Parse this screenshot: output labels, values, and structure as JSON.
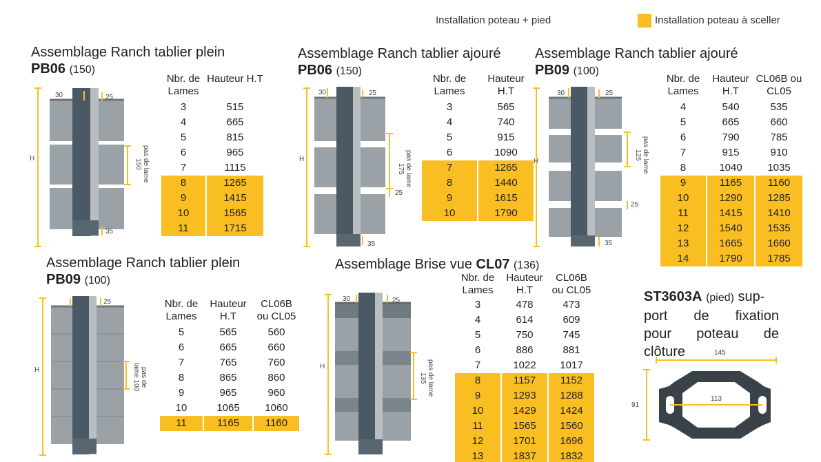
{
  "legend": {
    "item1": "Installation poteau + pied",
    "item2": "Installation poteau à sceller",
    "highlight_color": "#f9bf22"
  },
  "labels": {
    "H": "H",
    "d30": "30",
    "d25": "25",
    "d35": "35",
    "pas150": "pas de lame 150",
    "pas175": "pas de lame 175",
    "pas125": "pas de lame 125",
    "pas100": "pas de lame 100",
    "pas135": "pas de lame 135",
    "dim145": "145",
    "dim113": "113",
    "dim91": "91"
  },
  "blocks": [
    {
      "title_prefix": "Assemblage Ranch tablier plein",
      "code": "PB06",
      "num": "(150)",
      "headers": [
        "Nbr. de Lames",
        "Hauteur H.T"
      ],
      "rows": [
        {
          "c": [
            "3",
            "515"
          ],
          "hl": false
        },
        {
          "c": [
            "4",
            "665"
          ],
          "hl": false
        },
        {
          "c": [
            "5",
            "815"
          ],
          "hl": false
        },
        {
          "c": [
            "6",
            "965"
          ],
          "hl": false
        },
        {
          "c": [
            "7",
            "1115"
          ],
          "hl": false
        },
        {
          "c": [
            "8",
            "1265"
          ],
          "hl": true
        },
        {
          "c": [
            "9",
            "1415"
          ],
          "hl": true
        },
        {
          "c": [
            "10",
            "1565"
          ],
          "hl": true
        },
        {
          "c": [
            "11",
            "1715"
          ],
          "hl": true
        }
      ]
    },
    {
      "title_prefix": "Assemblage Ranch tablier ajouré",
      "code": "PB06",
      "num": "(150)",
      "headers": [
        "Nbr. de Lames",
        "Hauteur H.T"
      ],
      "rows": [
        {
          "c": [
            "3",
            "565"
          ],
          "hl": false
        },
        {
          "c": [
            "4",
            "740"
          ],
          "hl": false
        },
        {
          "c": [
            "5",
            "915"
          ],
          "hl": false
        },
        {
          "c": [
            "6",
            "1090"
          ],
          "hl": false
        },
        {
          "c": [
            "7",
            "1265"
          ],
          "hl": true
        },
        {
          "c": [
            "8",
            "1440"
          ],
          "hl": true
        },
        {
          "c": [
            "9",
            "1615"
          ],
          "hl": true
        },
        {
          "c": [
            "10",
            "1790"
          ],
          "hl": true
        }
      ]
    },
    {
      "title_prefix": "Assemblage Ranch tablier ajouré",
      "code": "PB09",
      "num": "(100)",
      "headers": [
        "Nbr. de Lames",
        "Hauteur H.T",
        "CL06B ou CL05"
      ],
      "rows": [
        {
          "c": [
            "4",
            "540",
            "535"
          ],
          "hl": false
        },
        {
          "c": [
            "5",
            "665",
            "660"
          ],
          "hl": false
        },
        {
          "c": [
            "6",
            "790",
            "785"
          ],
          "hl": false
        },
        {
          "c": [
            "7",
            "915",
            "910"
          ],
          "hl": false
        },
        {
          "c": [
            "8",
            "1040",
            "1035"
          ],
          "hl": false
        },
        {
          "c": [
            "9",
            "1165",
            "1160"
          ],
          "hl": true
        },
        {
          "c": [
            "10",
            "1290",
            "1285"
          ],
          "hl": true
        },
        {
          "c": [
            "11",
            "1415",
            "1410"
          ],
          "hl": true
        },
        {
          "c": [
            "12",
            "1540",
            "1535"
          ],
          "hl": true
        },
        {
          "c": [
            "13",
            "1665",
            "1660"
          ],
          "hl": true
        },
        {
          "c": [
            "14",
            "1790",
            "1785"
          ],
          "hl": true
        }
      ]
    },
    {
      "title_prefix": "Assemblage Ranch tablier plein",
      "code": "PB09",
      "num": "(100)",
      "headers": [
        "Nbr. de Lames",
        "Hauteur H.T",
        "CL06B ou CL05"
      ],
      "rows": [
        {
          "c": [
            "5",
            "565",
            "560"
          ],
          "hl": false
        },
        {
          "c": [
            "6",
            "665",
            "660"
          ],
          "hl": false
        },
        {
          "c": [
            "7",
            "765",
            "760"
          ],
          "hl": false
        },
        {
          "c": [
            "8",
            "865",
            "860"
          ],
          "hl": false
        },
        {
          "c": [
            "9",
            "965",
            "960"
          ],
          "hl": false
        },
        {
          "c": [
            "10",
            "1065",
            "1060"
          ],
          "hl": false
        },
        {
          "c": [
            "11",
            "1165",
            "1160"
          ],
          "hl": true
        }
      ]
    },
    {
      "title_prefix": "Assemblage Brise vue",
      "code": "CL07",
      "num": "(136)",
      "headers": [
        "Nbr. de Lames",
        "Hauteur H.T",
        "CL06B ou CL05"
      ],
      "rows": [
        {
          "c": [
            "3",
            "478",
            "473"
          ],
          "hl": false
        },
        {
          "c": [
            "4",
            "614",
            "609"
          ],
          "hl": false
        },
        {
          "c": [
            "5",
            "750",
            "745"
          ],
          "hl": false
        },
        {
          "c": [
            "6",
            "886",
            "881"
          ],
          "hl": false
        },
        {
          "c": [
            "7",
            "1022",
            "1017"
          ],
          "hl": false
        },
        {
          "c": [
            "8",
            "1157",
            "1152"
          ],
          "hl": true
        },
        {
          "c": [
            "9",
            "1293",
            "1288"
          ],
          "hl": true
        },
        {
          "c": [
            "10",
            "1429",
            "1424"
          ],
          "hl": true
        },
        {
          "c": [
            "11",
            "1565",
            "1560"
          ],
          "hl": true
        },
        {
          "c": [
            "12",
            "1701",
            "1696"
          ],
          "hl": true
        },
        {
          "c": [
            "13",
            "1837",
            "1832"
          ],
          "hl": true
        }
      ]
    }
  ],
  "support": {
    "code": "ST3603A",
    "pied": "(pied)",
    "sup": "sup-",
    "line2": "port de fixation",
    "line3": "pour poteau de",
    "line4": "clôture"
  }
}
